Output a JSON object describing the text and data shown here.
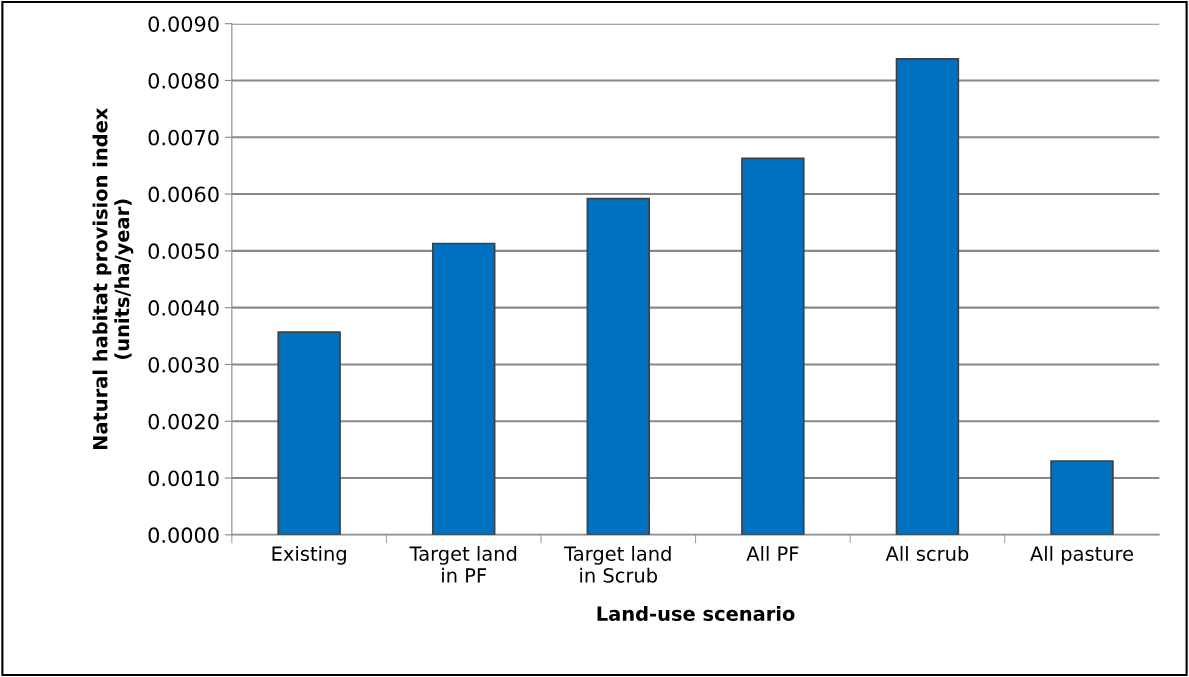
{
  "chart_data": {
    "type": "bar",
    "xlabel": "Land-use scenario",
    "ylabel": "Natural habitat provision index\n(units/ha/year)",
    "categories": [
      "Existing",
      "Target land\nin PF",
      "Target land\nin Scrub",
      "All PF",
      "All scrub",
      "All pasture"
    ],
    "values": [
      0.00357,
      0.00513,
      0.00592,
      0.00663,
      0.00838,
      0.0013
    ],
    "color": "#0070c0",
    "ylim": [
      0,
      0.009
    ],
    "yticks": [
      {
        "value": 0,
        "label": "0.0000"
      },
      {
        "value": 0.001,
        "label": "0.0010"
      },
      {
        "value": 0.002,
        "label": "0.0020"
      },
      {
        "value": 0.003,
        "label": "0.0030"
      },
      {
        "value": 0.004,
        "label": "0.0040"
      },
      {
        "value": 0.005,
        "label": "0.0050"
      },
      {
        "value": 0.006,
        "label": "0.0060"
      },
      {
        "value": 0.007,
        "label": "0.0070"
      },
      {
        "value": 0.008,
        "label": "0.0080"
      },
      {
        "value": 0.009,
        "label": "0.0090"
      }
    ],
    "grid": "y"
  }
}
